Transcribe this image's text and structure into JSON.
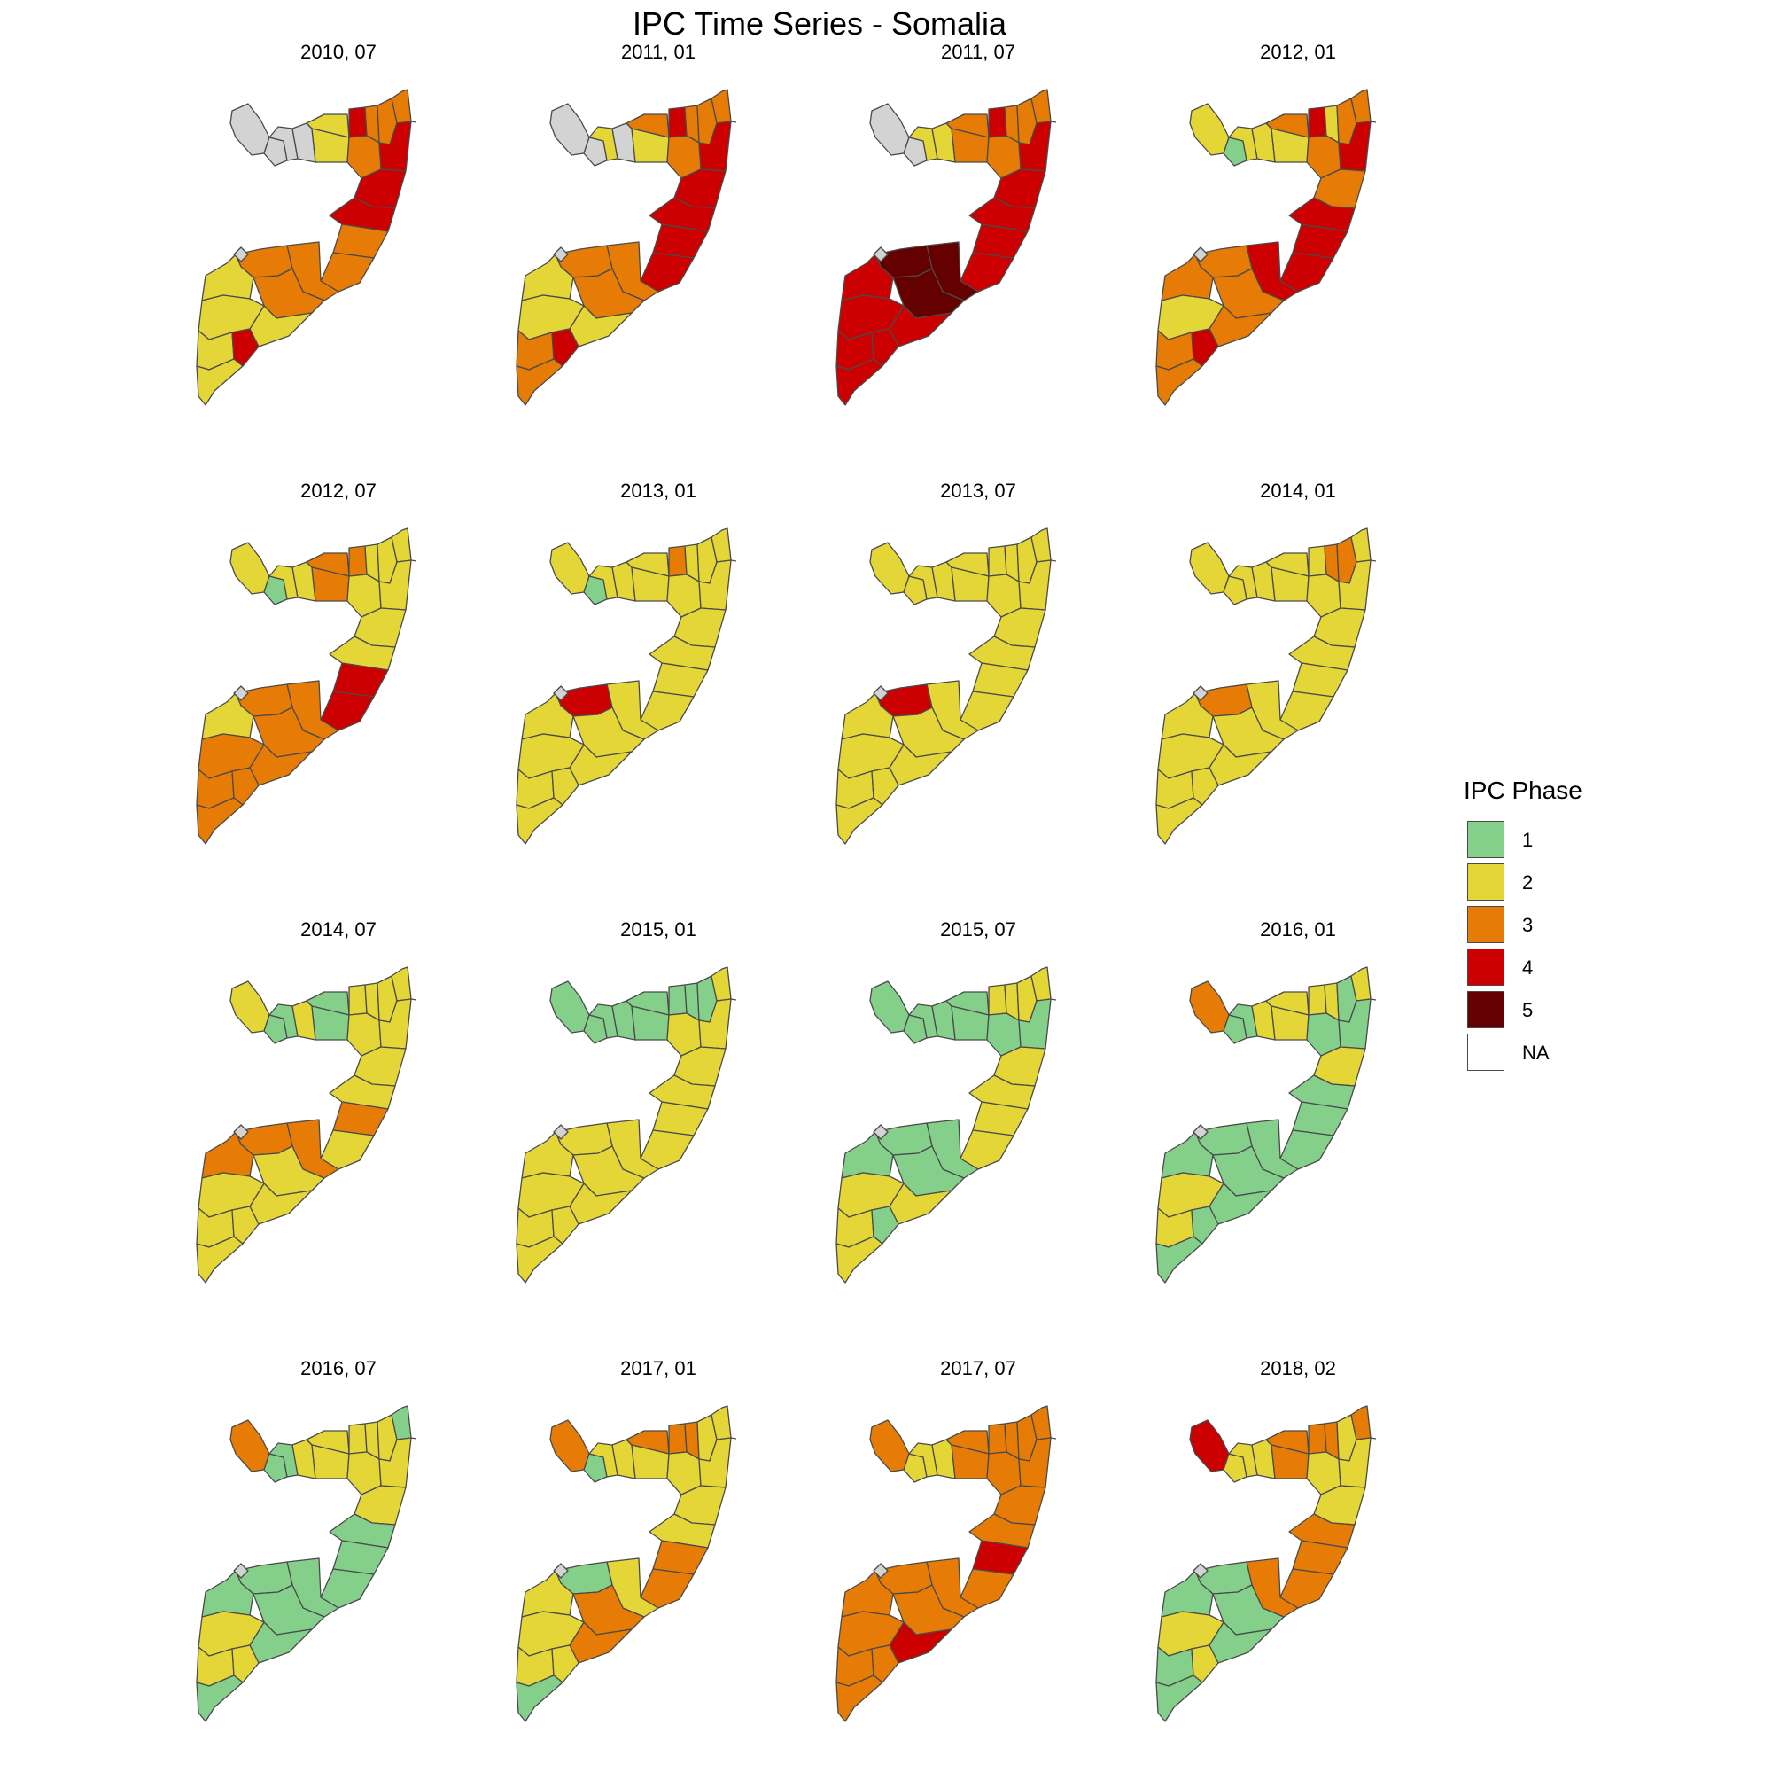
{
  "title": "IPC Time Series - Somalia",
  "legend": {
    "title": "IPC Phase",
    "items": [
      {
        "label": "1",
        "color": "#84cf8a"
      },
      {
        "label": "2",
        "color": "#e4d637"
      },
      {
        "label": "3",
        "color": "#e67c05"
      },
      {
        "label": "4",
        "color": "#cc0000"
      },
      {
        "label": "5",
        "color": "#650000"
      },
      {
        "label": "NA",
        "color": "#ffffff"
      }
    ],
    "missing_region_color": "#d3d3d3"
  },
  "panels": [
    {
      "label": "2010, 07",
      "phases": [
        "NA",
        "NA",
        "NA",
        "NA",
        "2",
        "2",
        "4",
        "3",
        "3",
        "3",
        "3",
        "4",
        "4",
        "4",
        "3",
        "3",
        "3",
        "3",
        "3",
        "2",
        "2",
        "2",
        "2",
        "4",
        "2",
        "NA"
      ]
    },
    {
      "label": "2011, 01",
      "phases": [
        "NA",
        "NA",
        "2",
        "NA",
        "3",
        "2",
        "4",
        "3",
        "3",
        "3",
        "3",
        "4",
        "4",
        "4",
        "4",
        "4",
        "3",
        "3",
        "3",
        "2",
        "2",
        "2",
        "3",
        "4",
        "3",
        "NA"
      ]
    },
    {
      "label": "2011, 07",
      "phases": [
        "NA",
        "NA",
        "2",
        "2",
        "3",
        "3",
        "4",
        "3",
        "3",
        "3",
        "3",
        "4",
        "4",
        "4",
        "4",
        "4",
        "5",
        "5",
        "5",
        "4",
        "4",
        "4",
        "4",
        "4",
        "4",
        "NA"
      ]
    },
    {
      "label": "2012, 01",
      "phases": [
        "2",
        "1",
        "2",
        "2",
        "3",
        "2",
        "4",
        "2",
        "3",
        "3",
        "3",
        "4",
        "3",
        "4",
        "4",
        "4",
        "4",
        "3",
        "3",
        "3",
        "3",
        "2",
        "3",
        "4",
        "3",
        "NA"
      ]
    },
    {
      "label": "2012, 07",
      "phases": [
        "2",
        "1",
        "2",
        "2",
        "3",
        "3",
        "3",
        "2",
        "2",
        "2",
        "2",
        "2",
        "2",
        "2",
        "4",
        "4",
        "3",
        "3",
        "3",
        "3",
        "2",
        "3",
        "3",
        "3",
        "3",
        "NA"
      ]
    },
    {
      "label": "2013, 01",
      "phases": [
        "2",
        "1",
        "2",
        "2",
        "2",
        "2",
        "3",
        "2",
        "2",
        "2",
        "2",
        "2",
        "2",
        "2",
        "2",
        "2",
        "2",
        "4",
        "2",
        "2",
        "2",
        "2",
        "2",
        "2",
        "2",
        "NA"
      ]
    },
    {
      "label": "2013, 07",
      "phases": [
        "2",
        "2",
        "2",
        "2",
        "2",
        "2",
        "2",
        "2",
        "2",
        "2",
        "2",
        "2",
        "2",
        "2",
        "2",
        "2",
        "2",
        "4",
        "2",
        "2",
        "2",
        "2",
        "2",
        "2",
        "2",
        "NA"
      ]
    },
    {
      "label": "2014, 01",
      "phases": [
        "2",
        "2",
        "2",
        "2",
        "2",
        "2",
        "2",
        "3",
        "3",
        "2",
        "2",
        "2",
        "2",
        "2",
        "2",
        "2",
        "2",
        "3",
        "2",
        "2",
        "2",
        "2",
        "2",
        "2",
        "2",
        "NA"
      ]
    },
    {
      "label": "2014, 07",
      "phases": [
        "2",
        "1",
        "1",
        "2",
        "1",
        "1",
        "2",
        "2",
        "2",
        "2",
        "2",
        "2",
        "2",
        "2",
        "3",
        "2",
        "3",
        "3",
        "2",
        "2",
        "3",
        "2",
        "2",
        "2",
        "2",
        "NA"
      ]
    },
    {
      "label": "2015, 01",
      "phases": [
        "1",
        "1",
        "1",
        "1",
        "1",
        "1",
        "1",
        "1",
        "1",
        "2",
        "2",
        "2",
        "2",
        "2",
        "2",
        "2",
        "2",
        "2",
        "2",
        "2",
        "2",
        "2",
        "2",
        "2",
        "2",
        "NA"
      ]
    },
    {
      "label": "2015, 07",
      "phases": [
        "1",
        "1",
        "1",
        "1",
        "1",
        "1",
        "2",
        "2",
        "2",
        "2",
        "1",
        "1",
        "2",
        "2",
        "2",
        "2",
        "1",
        "1",
        "1",
        "2",
        "1",
        "2",
        "2",
        "1",
        "2",
        "NA"
      ]
    },
    {
      "label": "2016, 01",
      "phases": [
        "3",
        "1",
        "1",
        "2",
        "2",
        "2",
        "2",
        "2",
        "1",
        "2",
        "1",
        "1",
        "2",
        "1",
        "1",
        "1",
        "1",
        "1",
        "1",
        "1",
        "1",
        "2",
        "2",
        "1",
        "1",
        "NA"
      ]
    },
    {
      "label": "2016, 07",
      "phases": [
        "3",
        "1",
        "1",
        "2",
        "2",
        "2",
        "2",
        "2",
        "2",
        "1",
        "2",
        "2",
        "2",
        "1",
        "1",
        "1",
        "1",
        "1",
        "1",
        "1",
        "1",
        "2",
        "2",
        "2",
        "1",
        "NA"
      ]
    },
    {
      "label": "2017, 01",
      "phases": [
        "3",
        "1",
        "2",
        "2",
        "3",
        "2",
        "3",
        "3",
        "2",
        "2",
        "2",
        "2",
        "2",
        "2",
        "3",
        "3",
        "2",
        "1",
        "3",
        "3",
        "2",
        "2",
        "2",
        "2",
        "1",
        "NA"
      ]
    },
    {
      "label": "2017, 07",
      "phases": [
        "3",
        "2",
        "2",
        "2",
        "3",
        "3",
        "3",
        "3",
        "3",
        "3",
        "3",
        "3",
        "3",
        "3",
        "4",
        "3",
        "3",
        "3",
        "3",
        "4",
        "3",
        "3",
        "3",
        "3",
        "3",
        "NA"
      ]
    },
    {
      "label": "2018, 02",
      "phases": [
        "4",
        "2",
        "2",
        "2",
        "3",
        "3",
        "3",
        "3",
        "2",
        "3",
        "2",
        "2",
        "2",
        "3",
        "3",
        "3",
        "3",
        "1",
        "1",
        "1",
        "1",
        "2",
        "1",
        "2",
        "1",
        "NA"
      ]
    }
  ]
}
